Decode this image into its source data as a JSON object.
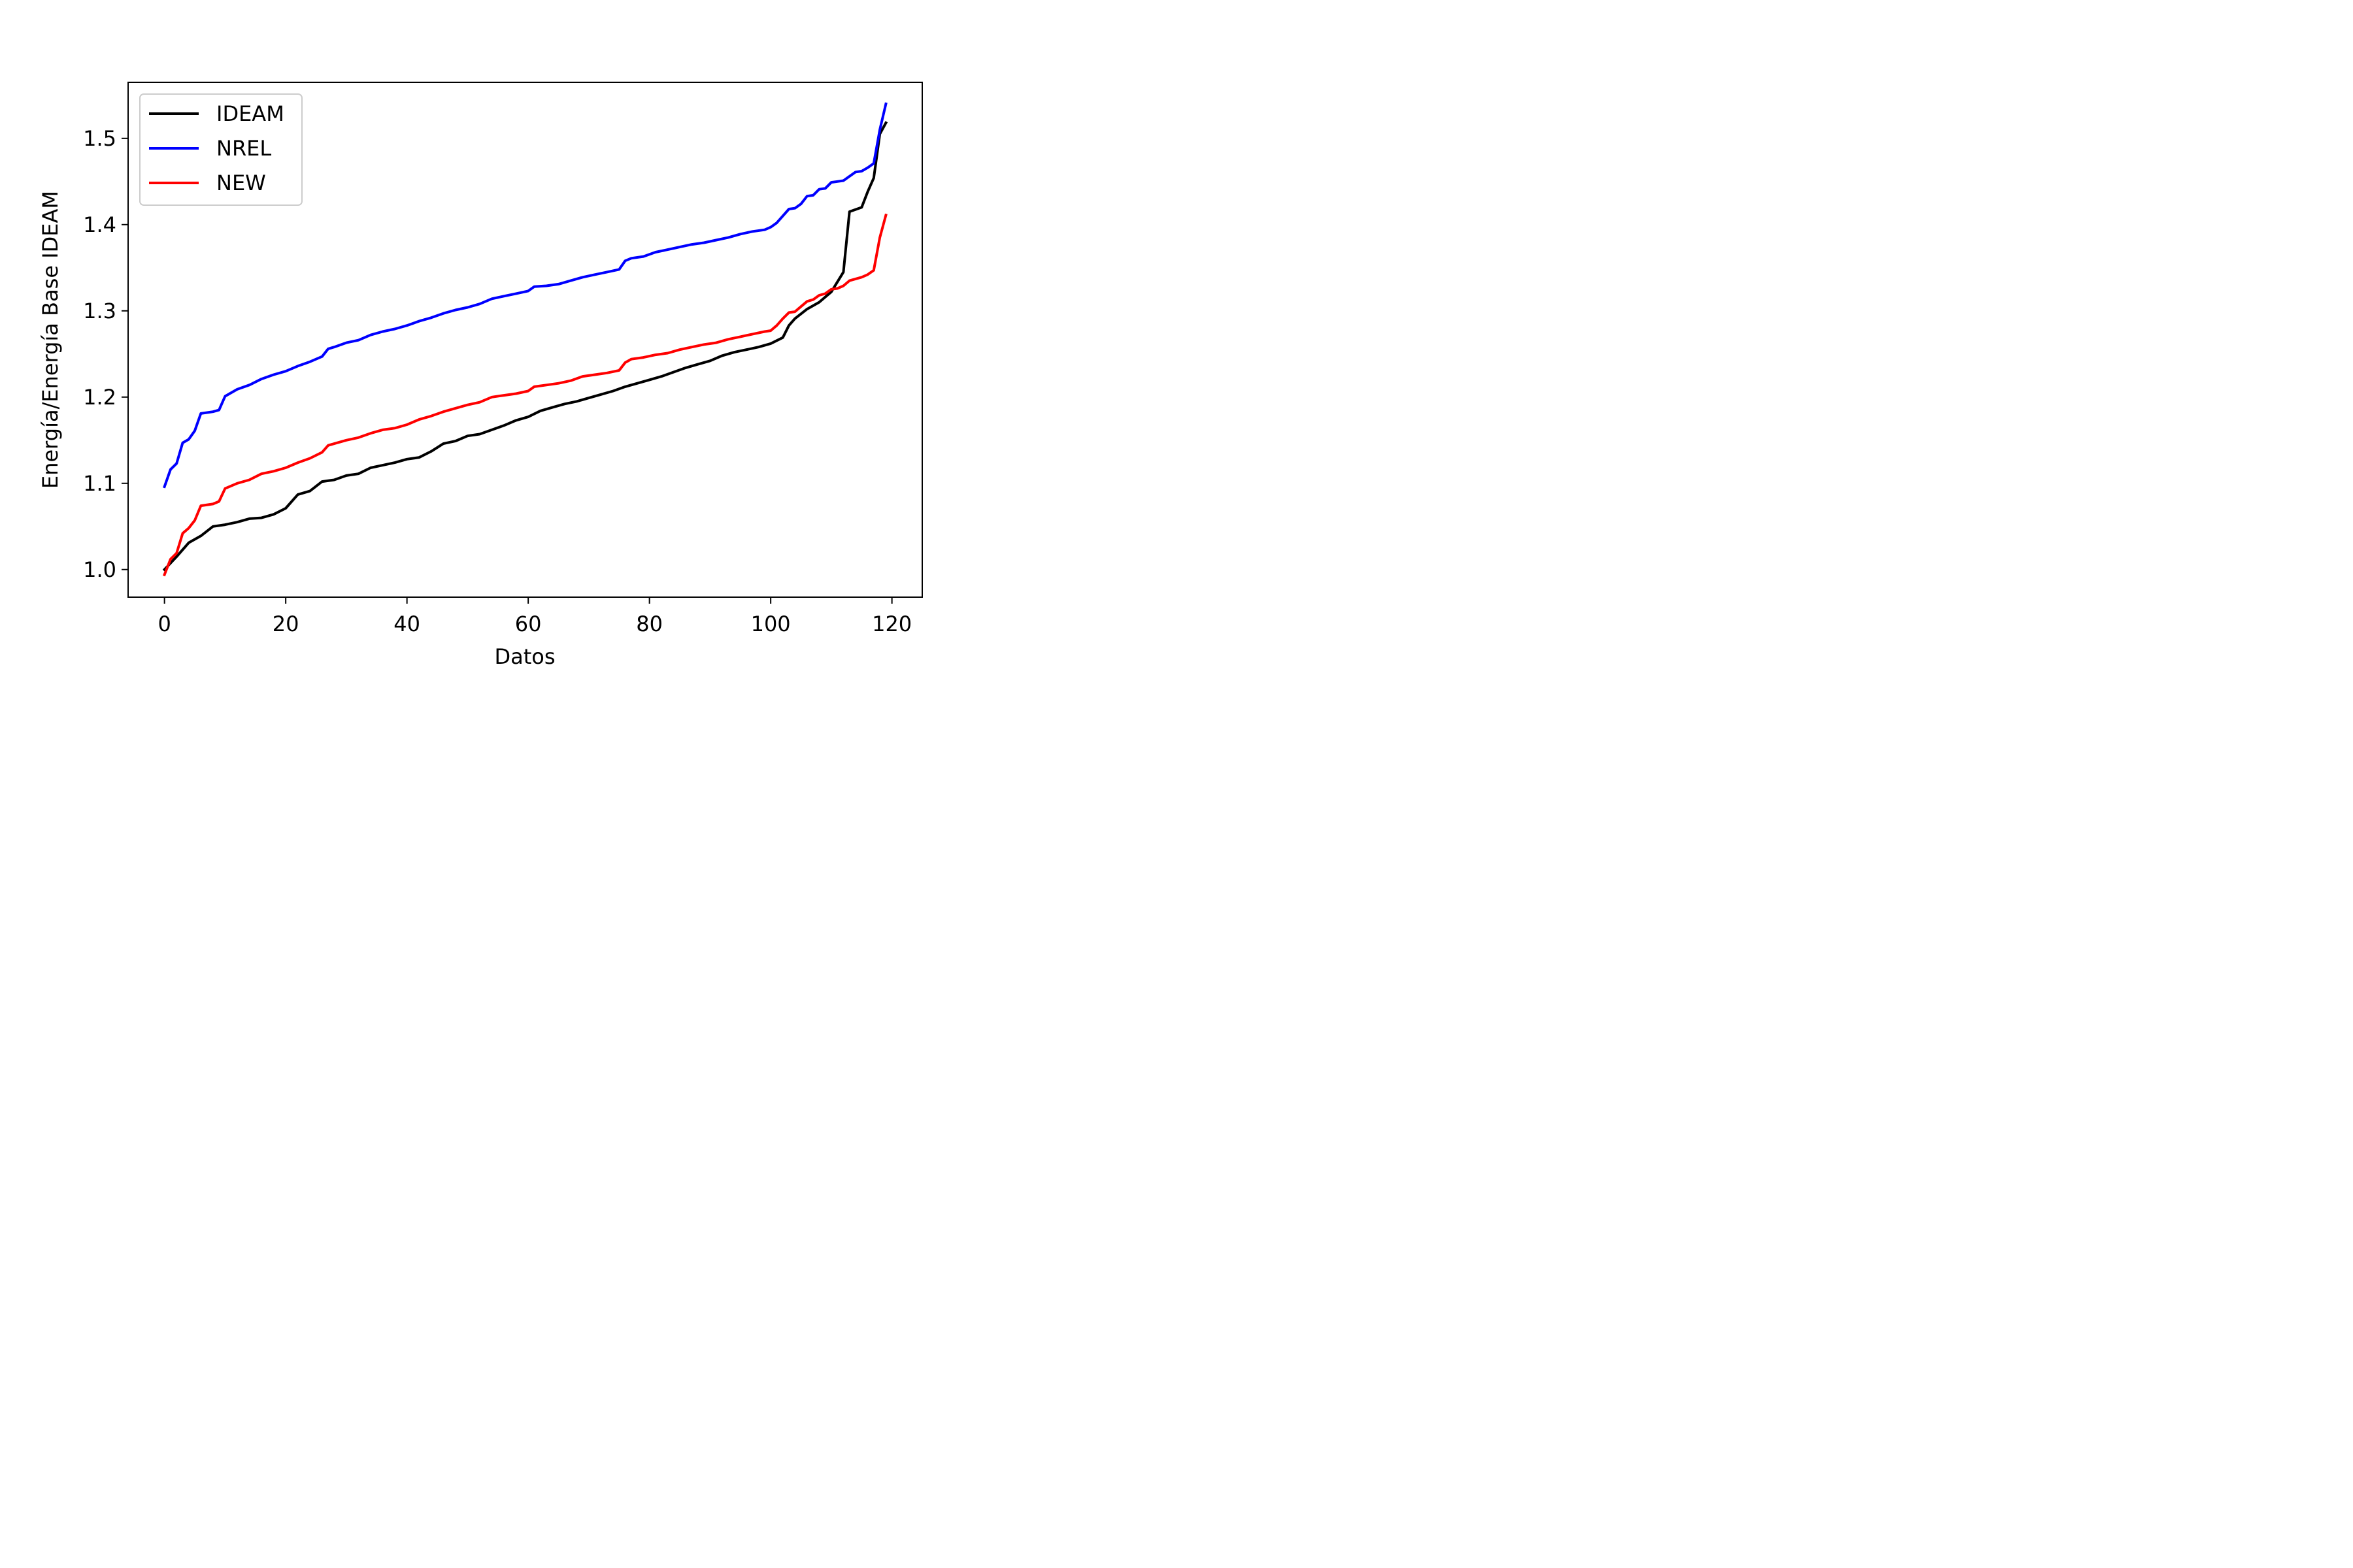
{
  "chart_data": {
    "type": "line",
    "xlabel": "Datos",
    "ylabel": "Energía/Energía Base IDEAM",
    "xlim": [
      -6,
      125
    ],
    "ylim": [
      0.968,
      1.565
    ],
    "xticks": [
      0,
      20,
      40,
      60,
      80,
      100,
      120
    ],
    "xtick_labels": [
      "0",
      "20",
      "40",
      "60",
      "80",
      "100",
      "120"
    ],
    "yticks": [
      1.0,
      1.1,
      1.2,
      1.3,
      1.4,
      1.5
    ],
    "ytick_labels": [
      "1.0",
      "1.1",
      "1.2",
      "1.3",
      "1.4",
      "1.5"
    ],
    "grid": false,
    "legend_position": "top-left",
    "series": [
      {
        "name": "IDEAM",
        "color": "#000000",
        "x": [
          0,
          2,
          4,
          6,
          8,
          10,
          12,
          14,
          16,
          18,
          20,
          22,
          24,
          26,
          28,
          30,
          32,
          34,
          36,
          38,
          40,
          42,
          44,
          46,
          48,
          50,
          52,
          54,
          56,
          58,
          60,
          62,
          64,
          66,
          68,
          70,
          72,
          74,
          76,
          78,
          80,
          82,
          84,
          86,
          88,
          90,
          92,
          94,
          96,
          98,
          100,
          102,
          103,
          104,
          106,
          108,
          110,
          112,
          113,
          115,
          116,
          117,
          118,
          119
        ],
        "values": [
          1.0,
          1.015,
          1.031,
          1.039,
          1.05,
          1.052,
          1.055,
          1.059,
          1.06,
          1.064,
          1.071,
          1.087,
          1.091,
          1.102,
          1.104,
          1.109,
          1.111,
          1.118,
          1.121,
          1.124,
          1.128,
          1.13,
          1.137,
          1.146,
          1.149,
          1.155,
          1.157,
          1.162,
          1.167,
          1.173,
          1.177,
          1.184,
          1.188,
          1.192,
          1.195,
          1.199,
          1.203,
          1.207,
          1.212,
          1.216,
          1.22,
          1.224,
          1.229,
          1.234,
          1.238,
          1.242,
          1.248,
          1.252,
          1.255,
          1.258,
          1.262,
          1.269,
          1.283,
          1.291,
          1.302,
          1.31,
          1.322,
          1.345,
          1.415,
          1.42,
          1.438,
          1.454,
          1.505,
          1.518
        ]
      },
      {
        "name": "NREL",
        "color": "#0000ff",
        "x": [
          0,
          1,
          2,
          3,
          4,
          5,
          6,
          8,
          9,
          10,
          12,
          14,
          16,
          18,
          20,
          22,
          24,
          26,
          27,
          28,
          30,
          32,
          34,
          36,
          38,
          40,
          42,
          44,
          46,
          48,
          50,
          52,
          54,
          56,
          58,
          60,
          61,
          63,
          65,
          67,
          69,
          71,
          73,
          75,
          76,
          77,
          79,
          81,
          83,
          85,
          87,
          89,
          91,
          93,
          95,
          97,
          99,
          100,
          101,
          102,
          103,
          104,
          105,
          106,
          107,
          108,
          109,
          110,
          111,
          112,
          114,
          115,
          116,
          117,
          118,
          119
        ],
        "values": [
          1.096,
          1.116,
          1.123,
          1.147,
          1.151,
          1.161,
          1.181,
          1.183,
          1.185,
          1.201,
          1.209,
          1.214,
          1.221,
          1.226,
          1.23,
          1.236,
          1.241,
          1.247,
          1.256,
          1.258,
          1.263,
          1.266,
          1.272,
          1.276,
          1.279,
          1.283,
          1.288,
          1.292,
          1.297,
          1.301,
          1.304,
          1.308,
          1.314,
          1.317,
          1.32,
          1.323,
          1.328,
          1.329,
          1.331,
          1.335,
          1.339,
          1.342,
          1.345,
          1.348,
          1.358,
          1.361,
          1.363,
          1.368,
          1.371,
          1.374,
          1.377,
          1.379,
          1.382,
          1.385,
          1.389,
          1.392,
          1.394,
          1.397,
          1.402,
          1.41,
          1.418,
          1.419,
          1.424,
          1.433,
          1.434,
          1.441,
          1.442,
          1.449,
          1.45,
          1.451,
          1.461,
          1.462,
          1.466,
          1.471,
          1.51,
          1.54
        ]
      },
      {
        "name": "NEW",
        "color": "#ff0000",
        "x": [
          0,
          1,
          2,
          3,
          4,
          5,
          6,
          8,
          9,
          10,
          12,
          14,
          16,
          18,
          20,
          22,
          24,
          26,
          27,
          28,
          30,
          32,
          34,
          36,
          38,
          40,
          42,
          44,
          46,
          48,
          50,
          52,
          54,
          56,
          58,
          60,
          61,
          63,
          65,
          67,
          69,
          71,
          73,
          75,
          76,
          77,
          79,
          81,
          83,
          85,
          87,
          89,
          91,
          93,
          95,
          97,
          99,
          100,
          101,
          102,
          103,
          104,
          105,
          106,
          107,
          108,
          109,
          110,
          111,
          112,
          113,
          115,
          116,
          117,
          118,
          119
        ],
        "values": [
          0.994,
          1.012,
          1.019,
          1.042,
          1.048,
          1.057,
          1.074,
          1.076,
          1.079,
          1.094,
          1.1,
          1.104,
          1.111,
          1.114,
          1.118,
          1.124,
          1.129,
          1.136,
          1.144,
          1.146,
          1.15,
          1.153,
          1.158,
          1.162,
          1.164,
          1.168,
          1.174,
          1.178,
          1.183,
          1.187,
          1.191,
          1.194,
          1.2,
          1.202,
          1.204,
          1.207,
          1.212,
          1.214,
          1.216,
          1.219,
          1.224,
          1.226,
          1.228,
          1.231,
          1.24,
          1.244,
          1.246,
          1.249,
          1.251,
          1.255,
          1.258,
          1.261,
          1.263,
          1.267,
          1.27,
          1.273,
          1.276,
          1.277,
          1.283,
          1.291,
          1.298,
          1.299,
          1.305,
          1.311,
          1.313,
          1.318,
          1.32,
          1.325,
          1.326,
          1.329,
          1.335,
          1.339,
          1.342,
          1.347,
          1.385,
          1.411
        ]
      }
    ]
  }
}
